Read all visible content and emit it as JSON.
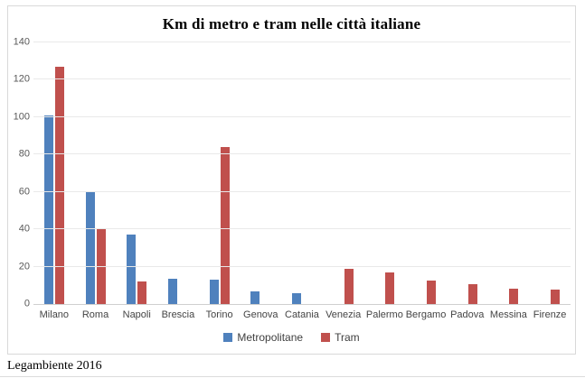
{
  "page": {
    "source_note": "Legambiente 2016"
  },
  "chart_data": {
    "type": "bar",
    "title": "Km di metro e tram nelle città italiane",
    "categories": [
      "Milano",
      "Roma",
      "Napoli",
      "Brescia",
      "Torino",
      "Genova",
      "Catania",
      "Venezia",
      "Palermo",
      "Bergamo",
      "Padova",
      "Messina",
      "Firenze"
    ],
    "series": [
      {
        "name": "Metropolitane",
        "color": "#4f81bd",
        "values": [
          101,
          60,
          37,
          13.5,
          13,
          7,
          6,
          0,
          0,
          0,
          0,
          0,
          0
        ]
      },
      {
        "name": "Tram",
        "color": "#c0504d",
        "values": [
          127,
          40,
          12,
          0,
          84,
          0,
          0,
          19,
          17,
          12.5,
          10.5,
          8,
          7.5
        ]
      }
    ],
    "ylabel": "",
    "xlabel": "",
    "ylim": [
      0,
      140
    ],
    "y_ticks": [
      0,
      20,
      40,
      60,
      80,
      100,
      120,
      140
    ],
    "grid": true,
    "legend_position": "bottom"
  }
}
